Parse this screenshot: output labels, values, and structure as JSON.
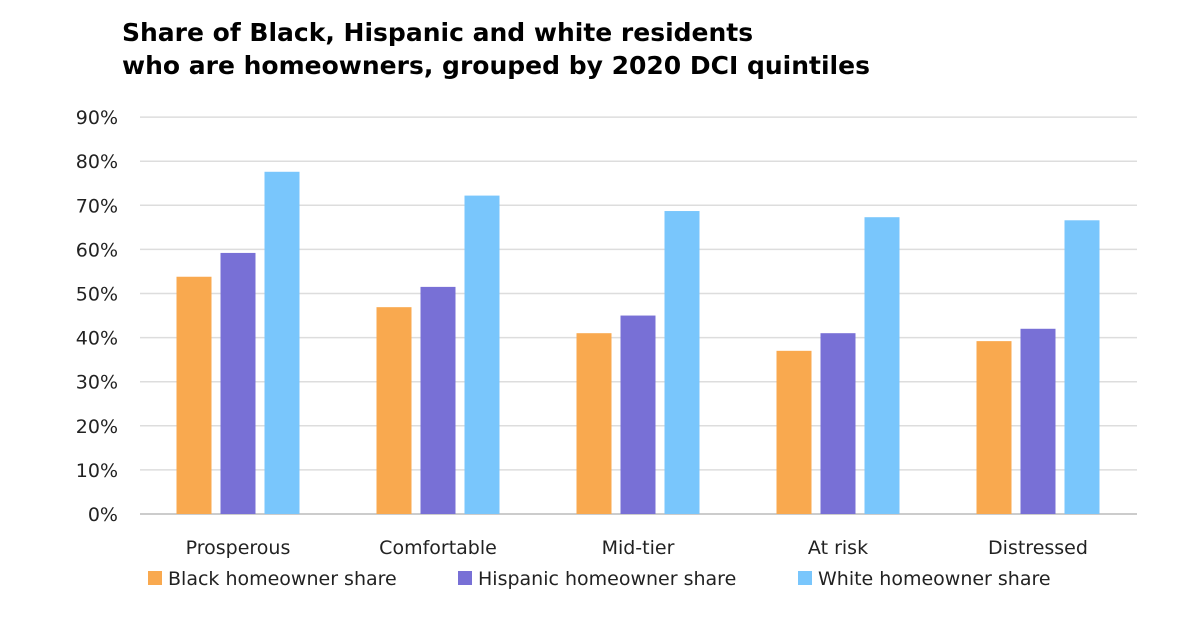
{
  "chart_data": {
    "type": "bar",
    "title_lines": [
      "Share of Black, Hispanic and white residents",
      "who are homeowners, grouped by 2020 DCI quintiles"
    ],
    "xlabel": "",
    "ylabel": "",
    "ylim": [
      0,
      90
    ],
    "yticks": [
      "0%",
      "10%",
      "20%",
      "30%",
      "40%",
      "50%",
      "60%",
      "70%",
      "80%",
      "90%"
    ],
    "grid": true,
    "legend_position": "bottom",
    "categories": [
      "Prosperous",
      "Comfortable",
      "Mid-tier",
      "At risk",
      "Distressed"
    ],
    "series": [
      {
        "name": "Black homeowner share",
        "color": "#F9A94F",
        "values": [
          53.8,
          46.9,
          41.0,
          37.0,
          39.2
        ]
      },
      {
        "name": "Hispanic homeowner share",
        "color": "#7870D6",
        "values": [
          59.2,
          51.5,
          45.0,
          41.0,
          42.0
        ]
      },
      {
        "name": "White homeowner share",
        "color": "#79C6FC",
        "values": [
          77.6,
          72.2,
          68.7,
          67.3,
          66.6
        ]
      }
    ]
  }
}
